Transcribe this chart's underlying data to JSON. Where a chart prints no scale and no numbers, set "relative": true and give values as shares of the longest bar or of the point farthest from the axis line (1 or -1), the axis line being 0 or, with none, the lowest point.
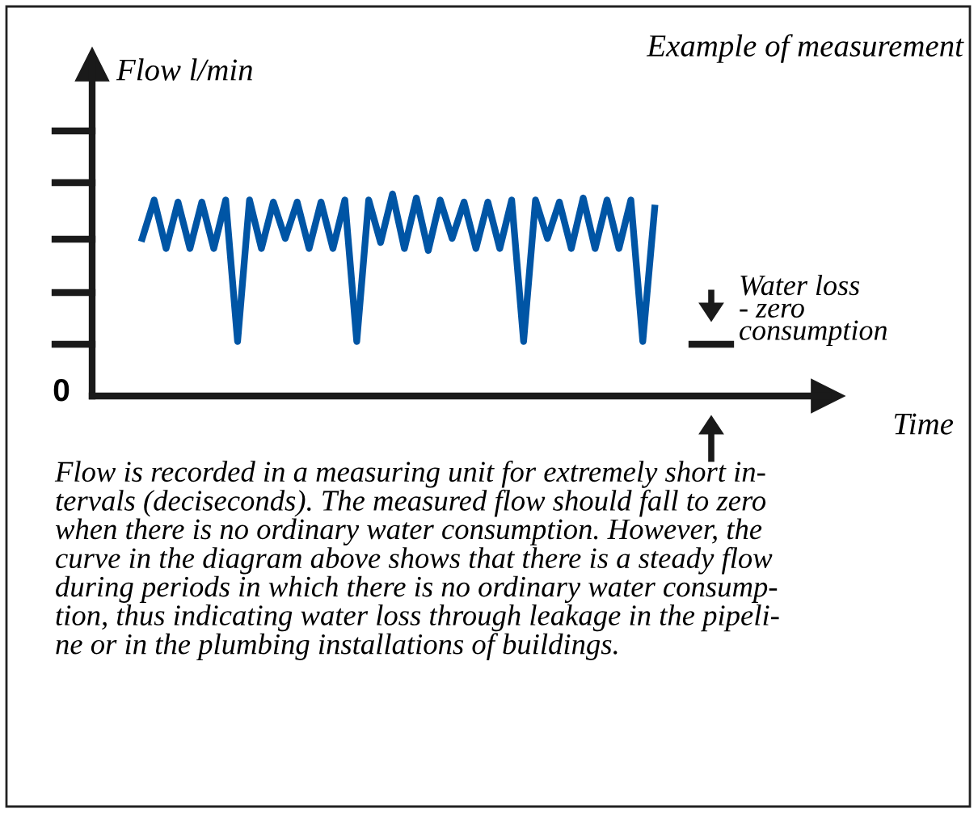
{
  "chart_data": {
    "type": "line",
    "title": "Example of measurement",
    "ylabel": "Flow l/min",
    "relative": true,
    "categories": [
      null,
      null,
      null,
      null,
      null,
      null,
      null,
      null,
      null,
      null,
      null,
      null,
      null,
      null,
      null,
      null,
      null,
      null,
      null,
      null,
      null,
      null,
      null,
      null,
      null,
      null,
      null,
      null,
      null,
      null,
      null,
      null,
      null,
      null,
      null,
      null,
      null,
      null,
      null,
      null,
      null,
      null,
      null,
      null
    ],
    "series": [
      {
        "color": "#0055a5",
        "values": [
          0.78,
          0.97,
          0.73,
          0.96,
          0.73,
          0.96,
          0.73,
          0.97,
          0.27,
          0.97,
          0.73,
          0.96,
          0.78,
          0.96,
          0.73,
          0.96,
          0.73,
          0.97,
          0.27,
          0.97,
          0.76,
          1.0,
          0.73,
          0.98,
          0.72,
          0.97,
          0.78,
          0.96,
          0.73,
          0.96,
          0.73,
          0.97,
          0.27,
          0.97,
          0.78,
          0.96,
          0.73,
          0.98,
          0.73,
          0.97,
          0.73,
          0.97,
          0.27,
          0.93
        ]
      }
    ],
    "annotations": [
      "0",
      "Water loss\n- zero\nconsumption",
      "Flow is recorded in a measuring unit for extremely short in-\ntervals (deciseconds). The measured flow should fall to zero\nwhen there is no ordinary water consumption. However, the\ncurve in the diagram above shows that there is a steady flow\nduring periods in which there is no ordinary water consump-\ntion, thus indicating water loss through leakage in the pipeli-\nne or in the plumbing installations of buildings.",
      "Time"
    ],
    "legend": false,
    "marker": "none",
    "line_style": "solid"
  }
}
